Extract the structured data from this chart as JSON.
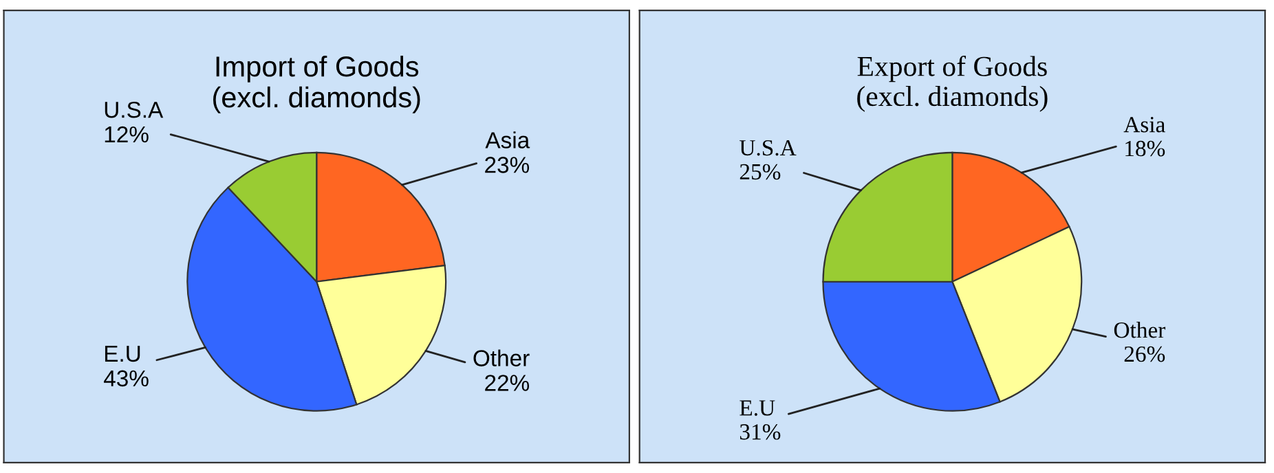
{
  "chart_data": [
    {
      "type": "pie",
      "title": "Import of Goods\n(excl. diamonds)",
      "categories": [
        "Asia",
        "Other",
        "E.U",
        "U.S.A"
      ],
      "values": [
        23,
        22,
        43,
        12
      ],
      "value_labels": [
        "23%",
        "22%",
        "43%",
        "12%"
      ],
      "colors": [
        "#ff6622",
        "#ffff99",
        "#3366ff",
        "#99cc33"
      ]
    },
    {
      "type": "pie",
      "title": "Export of Goods\n(excl. diamonds)",
      "categories": [
        "Asia",
        "Other",
        "E.U",
        "U.S.A"
      ],
      "values": [
        18,
        26,
        31,
        25
      ],
      "value_labels": [
        "18%",
        "26%",
        "31%",
        "25%"
      ],
      "colors": [
        "#ff6622",
        "#ffff99",
        "#3366ff",
        "#99cc33"
      ]
    }
  ]
}
